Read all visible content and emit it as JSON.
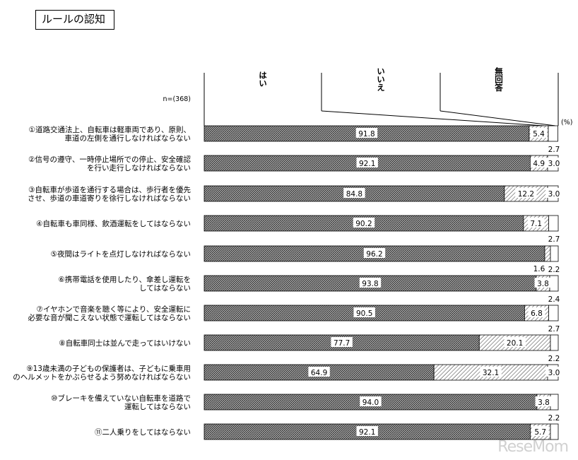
{
  "title": "ルールの認知",
  "n_label": "n=(368)",
  "unit_label": "(%)",
  "watermark": "ReseMom",
  "chart_data": {
    "type": "bar",
    "stacked": true,
    "orientation": "horizontal",
    "xlim": [
      0,
      100
    ],
    "series": [
      {
        "name": "はい",
        "pattern": "dense-hatch-dark"
      },
      {
        "name": "いいえ",
        "pattern": "diagonal-hatch"
      },
      {
        "name": "無回答",
        "pattern": "white"
      }
    ],
    "categories": [
      [
        "①道路交通法上、自転車は軽車両であり、原則、",
        "車道の左側を通行しなければならない"
      ],
      [
        "②信号の遵守、一時停止場所での停止、安全確認",
        "を行い走行しなければならない"
      ],
      [
        "③自転車が歩道を通行する場合は、歩行者を優先",
        "させ、歩道の車道寄りを徐行しなければならない"
      ],
      [
        "④自転車も車同様、飲酒運転をしてはならない"
      ],
      [
        "⑤夜間はライトを点灯しなければならない"
      ],
      [
        "⑥携帯電話を使用したり、傘差し運転を",
        "してはならない"
      ],
      [
        "⑦イヤホンで音楽を聴く等により、安全運転に",
        "必要な音が聞こえない状態で運転してはならない"
      ],
      [
        "⑧自転車同士は並んで走ってはいけない"
      ],
      [
        "⑨13歳未満の子どもの保護者は、子どもに乗車用",
        "のヘルメットをかぶらせるよう努めなければならない"
      ],
      [
        "⑩ブレーキを備えていない自転車を道路で",
        "運転してはならない"
      ],
      [
        "⑪二人乗りをしてはならない"
      ]
    ],
    "values": [
      [
        91.8,
        5.4,
        2.7
      ],
      [
        92.1,
        4.9,
        3.0
      ],
      [
        84.8,
        12.2,
        3.0
      ],
      [
        90.2,
        7.1,
        2.7
      ],
      [
        96.2,
        1.6,
        2.2
      ],
      [
        93.8,
        3.8,
        2.4
      ],
      [
        90.5,
        6.8,
        2.7
      ],
      [
        77.7,
        20.1,
        2.2
      ],
      [
        64.9,
        32.1,
        3.0
      ],
      [
        94.0,
        3.8,
        2.2
      ],
      [
        92.1,
        5.7,
        2.2
      ]
    ],
    "labels": [
      [
        "91.8",
        "5.4",
        "2.7"
      ],
      [
        "92.1",
        "4.9",
        "3.0"
      ],
      [
        "84.8",
        "12.2",
        "3.0"
      ],
      [
        "90.2",
        "7.1",
        "2.7"
      ],
      [
        "96.2",
        "1.6",
        "2.2"
      ],
      [
        "93.8",
        "3.8",
        "2.4"
      ],
      [
        "90.5",
        "6.8",
        "2.7"
      ],
      [
        "77.7",
        "20.1",
        "2.2"
      ],
      [
        "64.9",
        "32.1",
        "3.0"
      ],
      [
        "94.0",
        "3.8",
        "2.2"
      ],
      [
        "92.1",
        "5.7",
        ""
      ]
    ]
  }
}
